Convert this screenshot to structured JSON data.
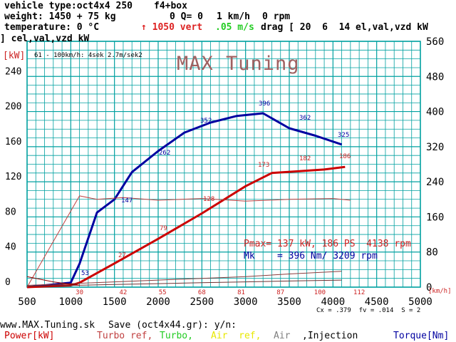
{
  "header": {
    "vehicle_type": "vehicle type:oct4x4 250",
    "box": "f4+box",
    "weight": "weight: 1450 + 75 kg",
    "q_readout": "0 Q= 0",
    "speed_readout": "1 km/h",
    "rpm_readout": "0 rpm",
    "temperature": "temperature: 0 °C",
    "vert": "↑ 1050 vert",
    "ms": ".05 m/s",
    "drag": "drag [ 20  6  14 el,val,vzd kW",
    "cel_val": "] cel,val,vzd kW",
    "kw_unit": "[kW]",
    "accel_note": "61 - 100km/h: 4sek 2.7m/sek2"
  },
  "logo": "MAX Tuning",
  "annotations": {
    "pmax": "Pmax= 137 kW, 186 PS  4138 rpm",
    "mk": "Mk    = 396 Nm/ 3209 rpm",
    "torque_labels": [
      "53",
      "147",
      "262",
      "352",
      "396",
      "362",
      "325"
    ],
    "power_labels": [
      "27",
      "79",
      "128",
      "173",
      "182",
      "186"
    ],
    "kmh_unit": "[km/h]",
    "coefficients": "Cx = .379  fv = .014  S = 2"
  },
  "footer": {
    "url": "www.MAX.Tuning.sk",
    "save_prompt": "Save (oct4x44.gr): y/n:",
    "power_legend": "Power[kW]",
    "turbo_ref": "Turbo ref,",
    "turbo": "Turbo,",
    "air_ref": "Air  ref,",
    "air": "Air",
    "injection": ",Injection",
    "torque_legend": "Torque[Nm]"
  },
  "colors": {
    "grid": "#00a0a0",
    "torque": "#0000a0",
    "power": "#cc0000",
    "turbo_ref": "#c04040",
    "turbo": "#22cc22",
    "air_ref": "#ffff00",
    "air": "#808080",
    "injection": "#000000",
    "power_text": "#cc2222",
    "logo": "#a06060"
  },
  "chart_data": {
    "type": "line",
    "xlabel": "",
    "xlim": [
      500,
      5000
    ],
    "x_ticks": [
      500,
      1000,
      1500,
      2000,
      2500,
      3000,
      3500,
      4000,
      4500,
      5000
    ],
    "speed_ticks": [
      "30",
      "42",
      "55",
      "68",
      "81",
      "87",
      "100",
      "112"
    ],
    "speed_tick_rpm": [
      1100,
      1600,
      2050,
      2500,
      2950,
      3400,
      3850,
      4300
    ],
    "ylim_left": [
      0,
      280
    ],
    "y_ticks_left": [
      0,
      40,
      80,
      120,
      160,
      200,
      240
    ],
    "ylim_right": [
      0,
      560
    ],
    "y_ticks_right": [
      0,
      80,
      160,
      240,
      320,
      400,
      480,
      560
    ],
    "series": [
      {
        "name": "Torque[Nm]",
        "axis": "right",
        "color": "#0000a0",
        "width": 3,
        "x": [
          500,
          1000,
          1100,
          1300,
          1500,
          1700,
          2000,
          2300,
          2600,
          2900,
          3200,
          3500,
          3800,
          4100
        ],
        "y": [
          0,
          10,
          53,
          170,
          200,
          262,
          310,
          352,
          375,
          390,
          396,
          362,
          345,
          325
        ]
      },
      {
        "name": "Power[kW]",
        "axis": "left",
        "color": "#cc0000",
        "width": 3,
        "x": [
          500,
          1000,
          1100,
          1500,
          2000,
          2500,
          3000,
          3300,
          3600,
          3900,
          4138
        ],
        "y": [
          0,
          2,
          5,
          27,
          55,
          84,
          115,
          130,
          132,
          134,
          137
        ]
      },
      {
        "name": "Turbo ref",
        "axis": "left",
        "color": "#c04040",
        "width": 1,
        "x": [
          500,
          1100,
          1300,
          1600,
          2000,
          2500,
          3000,
          3500,
          4000,
          4200
        ],
        "y": [
          0,
          104,
          100,
          102,
          99,
          101,
          98,
          100,
          101,
          99
        ]
      },
      {
        "name": "Air ref",
        "axis": "left",
        "color": "#8b3a3a",
        "width": 1,
        "x": [
          500,
          1000,
          1500,
          2000,
          2500,
          3000,
          3500,
          4100
        ],
        "y": [
          2,
          4,
          6,
          8,
          10,
          12,
          15,
          18
        ]
      },
      {
        "name": "Injection",
        "axis": "left",
        "color": "#703030",
        "width": 1,
        "x": [
          500,
          1000,
          1500,
          2000,
          2500,
          3000,
          3500,
          4100
        ],
        "y": [
          1,
          2,
          3,
          4,
          5,
          6,
          7,
          8
        ]
      },
      {
        "name": "Drag",
        "axis": "left",
        "color": "#900000",
        "width": 1,
        "x": [
          500,
          800,
          1100
        ],
        "y": [
          12,
          6,
          2
        ]
      }
    ]
  }
}
